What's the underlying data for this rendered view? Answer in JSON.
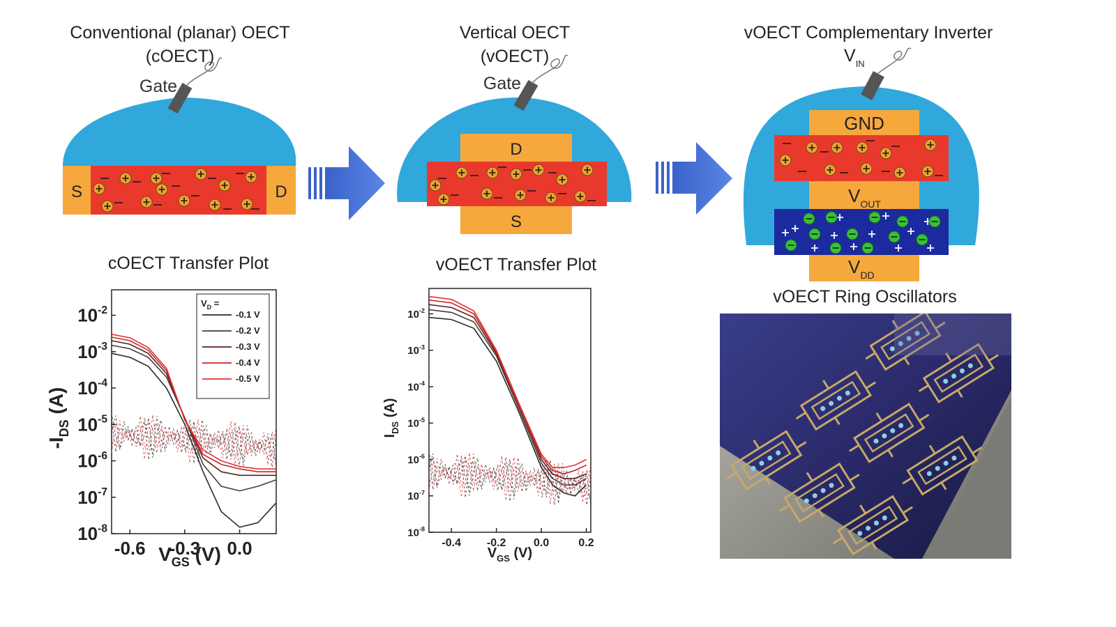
{
  "panels": {
    "coect": {
      "title_line1": "Conventional (planar) OECT",
      "title_line2": "(cOECT)",
      "gate_label": "Gate",
      "source_label": "S",
      "drain_label": "D"
    },
    "voect": {
      "title_line1": "Vertical OECT",
      "title_line2": "(vOECT)",
      "gate_label": "Gate",
      "drain_label": "D",
      "source_label": "S"
    },
    "inverter": {
      "title": "vOECT Complementary Inverter",
      "vin": "V",
      "vin_sub": "IN",
      "gnd": "GND",
      "vout": "V",
      "vout_sub": "OUT",
      "vdd": "V",
      "vdd_sub": "DD"
    }
  },
  "plots": {
    "coect": {
      "title": "cOECT Transfer Plot",
      "ylabel_main": "-I",
      "ylabel_sub": "DS",
      "ylabel_unit": " (A)",
      "xlabel_main": "V",
      "xlabel_sub": "GS",
      "xlabel_unit": " (V)",
      "legend_title": "V",
      "legend_title_sub": "D",
      "legend_title_suffix": " =",
      "legend": [
        "-0.1 V",
        "-0.2 V",
        "-0.3 V",
        "-0.4 V",
        "-0.5 V"
      ]
    },
    "voect": {
      "title": "vOECT Transfer Plot",
      "ylabel_main": "I",
      "ylabel_sub": "DS",
      "ylabel_unit": " (A)",
      "xlabel_main": "V",
      "xlabel_sub": "GS",
      "xlabel_unit": " (V)"
    }
  },
  "photo": {
    "title": "vOECT Ring Oscillators"
  },
  "chart_data": [
    {
      "type": "line",
      "title": "cOECT Transfer Plot",
      "xlabel": "VGS (V)",
      "ylabel": "-IDS (A)",
      "y_scale": "log",
      "xlim": [
        -0.7,
        0.2
      ],
      "ylim": [
        1e-08,
        0.05
      ],
      "x_ticks": [
        "-0.6",
        "-0.3",
        "0.0"
      ],
      "y_ticks": [
        "10-8",
        "10-7",
        "10-6",
        "10-5",
        "10-4",
        "10-3",
        "10-2"
      ],
      "legend_position": "top-right",
      "x": [
        -0.7,
        -0.6,
        -0.5,
        -0.4,
        -0.3,
        -0.2,
        -0.1,
        0.0,
        0.1,
        0.2
      ],
      "series": [
        {
          "name": "-0.1 V",
          "color": "#2a2a2a",
          "values": [
            0.0009,
            0.0007,
            0.0004,
            0.0001,
            1e-05,
            5e-07,
            4e-08,
            1.5e-08,
            2e-08,
            7e-08
          ]
        },
        {
          "name": "-0.2 V",
          "color": "#4a3a3a",
          "values": [
            0.0015,
            0.0012,
            0.0007,
            0.0002,
            1.5e-05,
            8e-07,
            2e-07,
            1.5e-07,
            2e-07,
            3e-07
          ]
        },
        {
          "name": "-0.3 V",
          "color": "#5a2020",
          "values": [
            0.002,
            0.0016,
            0.0009,
            0.00025,
            1.5e-05,
            1.2e-06,
            5e-07,
            4e-07,
            4e-07,
            4e-07
          ]
        },
        {
          "name": "-0.4 V",
          "color": "#cc2222",
          "values": [
            0.0025,
            0.002,
            0.0011,
            0.0003,
            1.4e-05,
            1.5e-06,
            8e-07,
            6e-07,
            5e-07,
            5e-07
          ]
        },
        {
          "name": "-0.5 V",
          "color": "#dd3333",
          "values": [
            0.003,
            0.0024,
            0.0013,
            0.00035,
            1.3e-05,
            2e-06,
            1e-06,
            7e-07,
            6e-07,
            6e-07
          ]
        }
      ]
    },
    {
      "type": "line",
      "title": "vOECT Transfer Plot",
      "xlabel": "VGS (V)",
      "ylabel": "IDS (A)",
      "y_scale": "log",
      "xlim": [
        -0.5,
        0.22
      ],
      "ylim": [
        1e-08,
        0.05
      ],
      "x_ticks": [
        "-0.4",
        "-0.2",
        "0.0",
        "0.2"
      ],
      "y_ticks": [
        "10-8",
        "10-7",
        "10-6",
        "10-5",
        "10-4",
        "10-3",
        "10-2"
      ],
      "x": [
        -0.5,
        -0.4,
        -0.3,
        -0.2,
        -0.1,
        0.0,
        0.05,
        0.1,
        0.15,
        0.2
      ],
      "series": [
        {
          "color": "#2a2a2a",
          "values": [
            0.008,
            0.007,
            0.004,
            0.0005,
            2e-05,
            6e-07,
            2e-07,
            1.2e-07,
            1e-07,
            2e-07
          ]
        },
        {
          "color": "#4a3a3a",
          "values": [
            0.013,
            0.011,
            0.006,
            0.0007,
            2.5e-05,
            8e-07,
            3e-07,
            2e-07,
            2e-07,
            3e-07
          ]
        },
        {
          "color": "#5a2020",
          "values": [
            0.018,
            0.015,
            0.008,
            0.0008,
            3e-05,
            1e-06,
            4e-07,
            3e-07,
            3e-07,
            4e-07
          ]
        },
        {
          "color": "#cc2222",
          "values": [
            0.024,
            0.02,
            0.01,
            0.0009,
            3e-05,
            1.2e-06,
            5e-07,
            4e-07,
            5e-07,
            7e-07
          ]
        },
        {
          "color": "#dd3333",
          "values": [
            0.03,
            0.025,
            0.012,
            0.001,
            3.5e-05,
            1.4e-06,
            6e-07,
            6e-07,
            7e-07,
            1e-06
          ]
        }
      ]
    }
  ]
}
